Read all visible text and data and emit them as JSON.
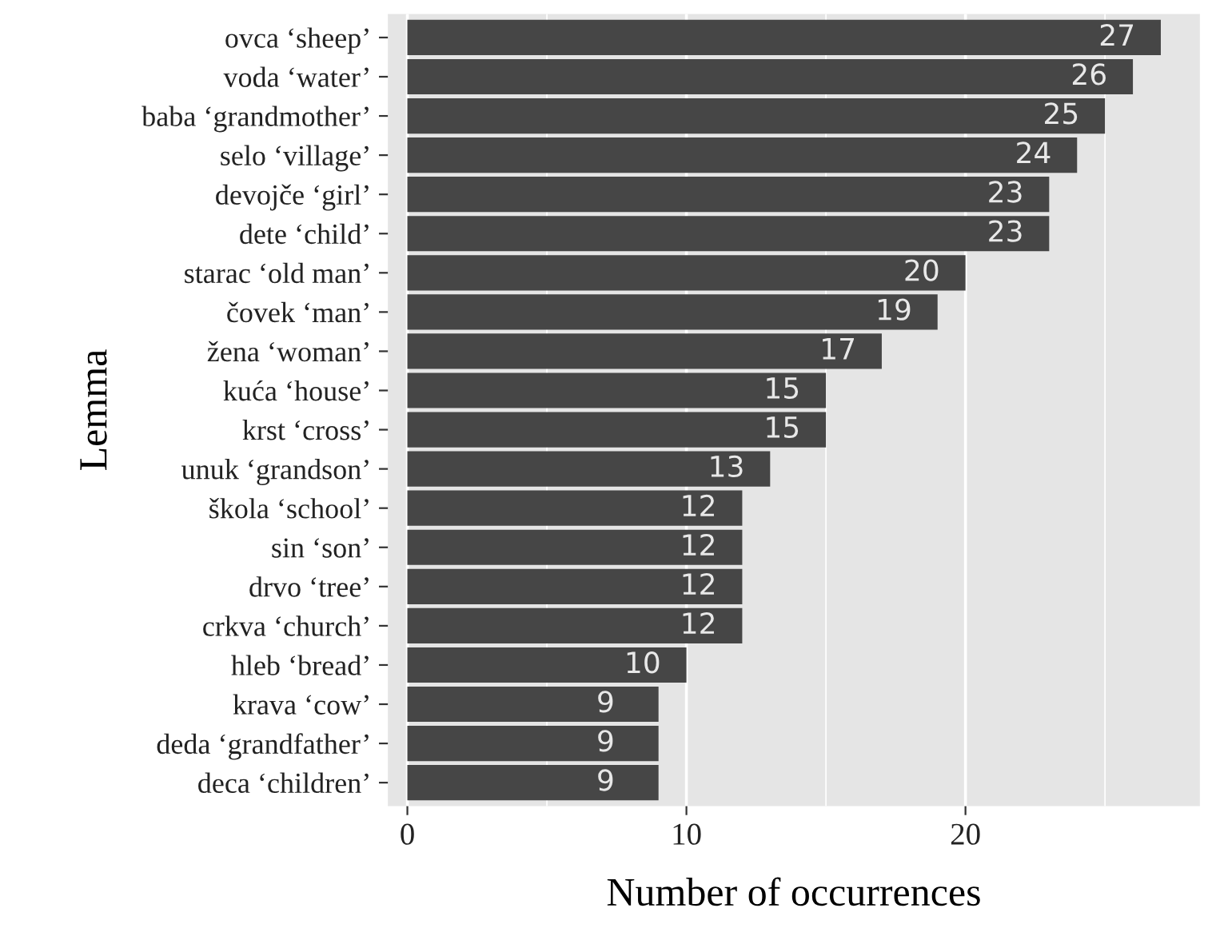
{
  "chart_data": {
    "type": "bar",
    "orientation": "horizontal",
    "xlabel": "Number of occurrences",
    "ylabel": "Lemma",
    "categories": [
      "ovca ‘sheep’",
      "voda ‘water’",
      "baba ‘grandmother’",
      "selo ‘village’",
      "devojče ‘girl’",
      "dete ‘child’",
      "starac ‘old man’",
      "čovek ‘man’",
      "žena ‘woman’",
      "kuća ‘house’",
      "krst ‘cross’",
      "unuk ‘grandson’",
      "škola ‘school’",
      "sin ‘son’",
      "drvo ‘tree’",
      "crkva ‘church’",
      "hleb ‘bread’",
      "krava ‘cow’",
      "deda ‘grandfather’",
      "deca ‘children’"
    ],
    "values": [
      27,
      26,
      25,
      24,
      23,
      23,
      20,
      19,
      17,
      15,
      15,
      13,
      12,
      12,
      12,
      12,
      10,
      9,
      9,
      9
    ],
    "color": "#464646",
    "data_labels": true,
    "xlim": [
      -0.7,
      28.4
    ],
    "xticks": [
      0,
      10,
      20
    ],
    "grid": "x"
  }
}
